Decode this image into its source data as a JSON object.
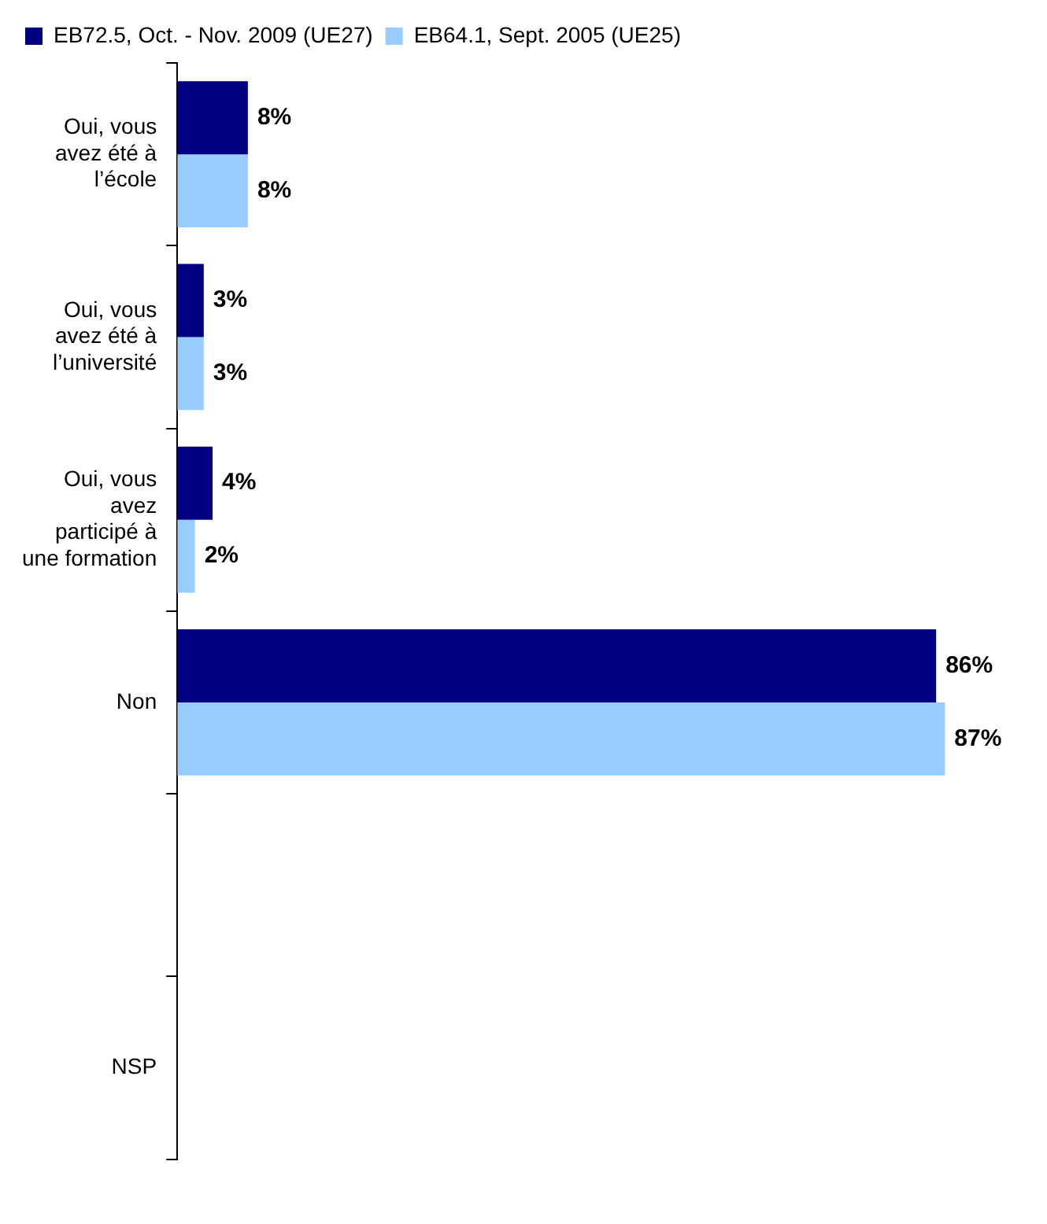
{
  "chart_data": {
    "type": "bar",
    "orientation": "horizontal",
    "categories": [
      "Oui, vous avez été à l’école",
      "Oui, vous avez été à l’université",
      "Oui, vous avez participé à une formation",
      "Non",
      null,
      "NSP"
    ],
    "series": [
      {
        "name": "EB72.5, Oct. - Nov. 2009 (UE27)",
        "color": "#000080",
        "values": [
          8,
          3,
          4,
          86,
          null,
          null
        ],
        "value_labels": [
          "8%",
          "3%",
          "4%",
          "86%",
          null,
          null
        ]
      },
      {
        "name": "EB64.1, Sept. 2005 (UE25)",
        "color": "#99ccff",
        "values": [
          8,
          3,
          2,
          87,
          null,
          null
        ],
        "value_labels": [
          "8%",
          "3%",
          "2%",
          "87%",
          null,
          null
        ]
      }
    ],
    "legend": "top left",
    "tick_labels": "y"
  }
}
